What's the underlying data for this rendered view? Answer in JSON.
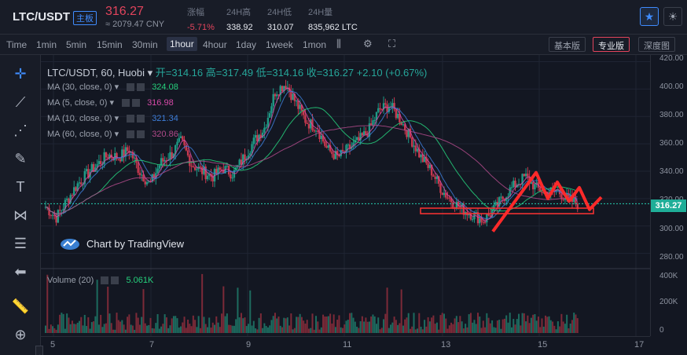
{
  "header": {
    "pair": "LTC/USDT",
    "tag": "主板",
    "price": "316.27",
    "cny": "≈ 2079.47 CNY",
    "stats": [
      {
        "label": "涨幅",
        "value": "-5.71%",
        "color": "#e2445c"
      },
      {
        "label": "24H高",
        "value": "338.92",
        "color": "#e6e9ef"
      },
      {
        "label": "24H低",
        "value": "310.07",
        "color": "#e6e9ef"
      },
      {
        "label": "24H量",
        "value": "835,962 LTC",
        "color": "#e6e9ef"
      }
    ],
    "icons": [
      "star-icon",
      "theme-icon"
    ]
  },
  "timeframes": [
    "Time",
    "1min",
    "5min",
    "15min",
    "30min",
    "1hour",
    "4hour",
    "1day",
    "1week",
    "1mon"
  ],
  "active_timeframe": "1hour",
  "views": [
    "基本版",
    "专业版",
    "深度图"
  ],
  "active_view": "专业版",
  "legend": {
    "title": "LTC/USDT, 60, Huobi",
    "open": "开=314.16",
    "high": "高=317.49",
    "low": "低=314.16",
    "close": "收=316.27",
    "change": "+2.10 (+0.67%)"
  },
  "ma_lines": [
    {
      "label": "MA (30, close, 0)",
      "value": "324.08",
      "color": "#26d07c"
    },
    {
      "label": "MA (5, close, 0)",
      "value": "316.98",
      "color": "#d64aa8"
    },
    {
      "label": "MA (10, close, 0)",
      "value": "321.34",
      "color": "#3d7dd8"
    },
    {
      "label": "MA (60, close, 0)",
      "value": "320.86",
      "color": "#b04a8a"
    }
  ],
  "volume": {
    "label": "Volume (20)",
    "value": "5.061K"
  },
  "watermark": "Chart by TradingView",
  "chart_data": {
    "type": "candlestick",
    "y_ticks": [
      "420.00",
      "400.00",
      "380.00",
      "360.00",
      "340.00",
      "320.00",
      "300.00",
      "280.00"
    ],
    "vol_ticks": [
      "400K",
      "200K",
      "0"
    ],
    "x_ticks": [
      "5",
      "7",
      "9",
      "11",
      "13",
      "15",
      "17"
    ],
    "current_price": "316.27",
    "ylim": [
      270,
      422
    ],
    "close_series": [
      314,
      306,
      318,
      330,
      338,
      345,
      352,
      350,
      356,
      340,
      330,
      346,
      352,
      362,
      345,
      340,
      336,
      342,
      338,
      350,
      362,
      372,
      398,
      404,
      390,
      376,
      372,
      356,
      350,
      356,
      362,
      370,
      385,
      388,
      378,
      364,
      350,
      340,
      326,
      318,
      312,
      308,
      304,
      312,
      322,
      330,
      336,
      328,
      324,
      326,
      320,
      316
    ]
  }
}
